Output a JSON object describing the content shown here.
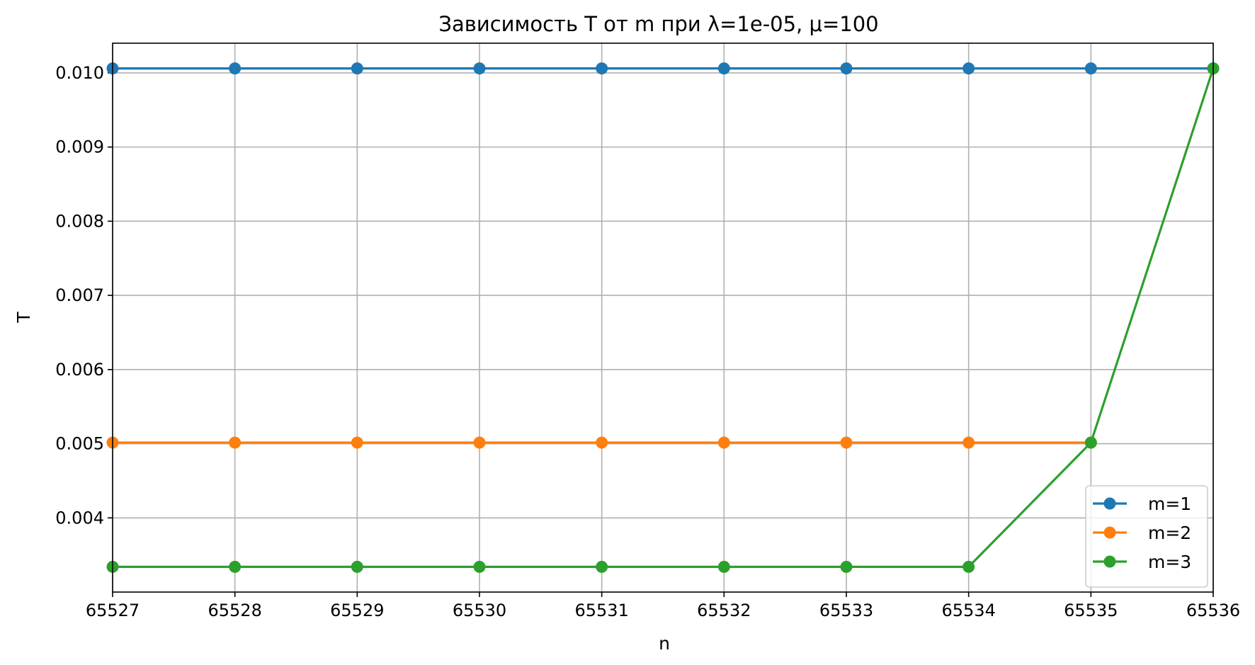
{
  "chart_data": {
    "type": "line",
    "title": "Зависимость T от m при λ=1e-05, μ=100",
    "xlabel": "n",
    "ylabel": "T",
    "x": [
      65527,
      65528,
      65529,
      65530,
      65531,
      65532,
      65533,
      65534,
      65535,
      65536
    ],
    "xticks": [
      "65527",
      "65528",
      "65529",
      "65530",
      "65531",
      "65532",
      "65533",
      "65534",
      "65535",
      "65536"
    ],
    "yticks": [
      "0.004",
      "0.005",
      "0.006",
      "0.007",
      "0.008",
      "0.009",
      "0.010"
    ],
    "xlim": [
      65527,
      65536
    ],
    "ylim": [
      0.003,
      0.0104
    ],
    "grid": true,
    "legend_position": "lower-right",
    "series": [
      {
        "name": "m=1",
        "color": "#1f77b4",
        "values": [
          0.01006,
          0.01006,
          0.01006,
          0.01006,
          0.01006,
          0.01006,
          0.01006,
          0.01006,
          0.01006,
          0.01006
        ]
      },
      {
        "name": "m=2",
        "color": "#ff7f0e",
        "values": [
          0.005015,
          0.005015,
          0.005015,
          0.005015,
          0.005015,
          0.005015,
          0.005015,
          0.005015,
          0.005015,
          null
        ]
      },
      {
        "name": "m=3",
        "color": "#2ca02c",
        "values": [
          0.00334,
          0.00334,
          0.00334,
          0.00334,
          0.00334,
          0.00334,
          0.00334,
          0.00334,
          0.005015,
          0.01006
        ]
      }
    ]
  }
}
